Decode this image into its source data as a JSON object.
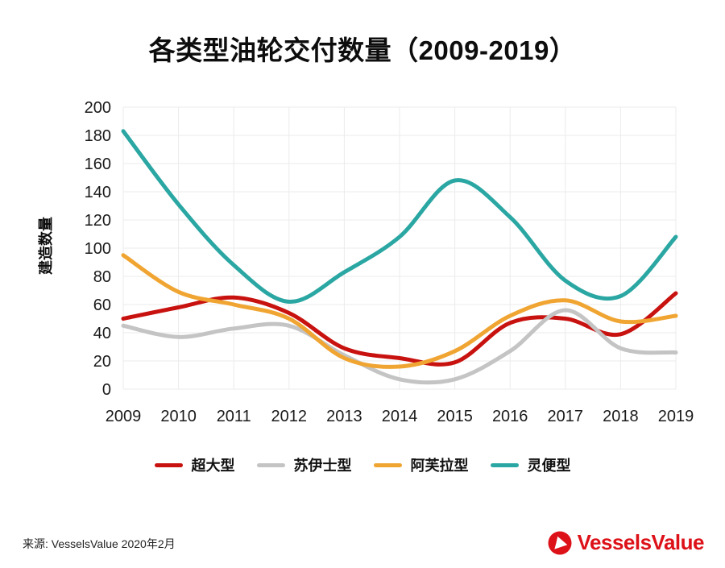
{
  "chart_data": {
    "type": "line",
    "title": "各类型油轮交付数量（2009-2019）",
    "x": [
      2009,
      2010,
      2011,
      2012,
      2013,
      2014,
      2015,
      2016,
      2017,
      2018,
      2019
    ],
    "series": [
      {
        "name": "超大型",
        "color": "#c8120f",
        "values": [
          50,
          58,
          65,
          54,
          29,
          22,
          19,
          47,
          50,
          39,
          68
        ]
      },
      {
        "name": "苏伊士型",
        "color": "#c4c4c4",
        "values": [
          45,
          37,
          43,
          45,
          24,
          7,
          7,
          27,
          56,
          29,
          26
        ]
      },
      {
        "name": "阿芙拉型",
        "color": "#f0a532",
        "values": [
          95,
          69,
          60,
          50,
          22,
          16,
          27,
          52,
          63,
          48,
          52
        ]
      },
      {
        "name": "灵便型",
        "color": "#2ba7a3",
        "values": [
          183,
          131,
          88,
          62,
          83,
          108,
          148,
          122,
          77,
          66,
          108
        ]
      }
    ],
    "xlabel": "",
    "ylabel": "建造数量",
    "ylim": [
      0,
      200
    ],
    "ytick_step": 20,
    "grid": true,
    "legend_position": "bottom",
    "smooth": true
  },
  "footer": {
    "source": "来源: VesselsValue 2020年2月",
    "logo_text": "VesselsValue",
    "logo_color": "#dd1118"
  }
}
